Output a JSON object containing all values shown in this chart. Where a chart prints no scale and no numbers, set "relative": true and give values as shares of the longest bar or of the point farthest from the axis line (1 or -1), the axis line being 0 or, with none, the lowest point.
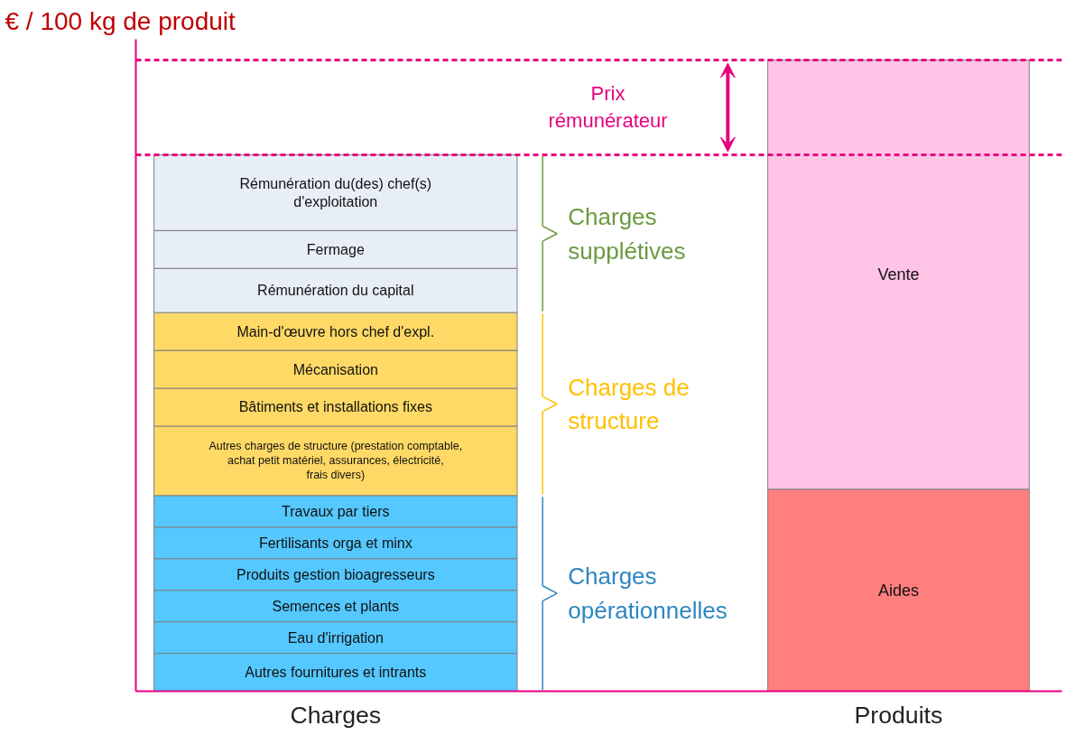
{
  "chart_data": {
    "type": "bar",
    "stacked": true,
    "relative": true,
    "ylabel": "€ / 100 kg de produit",
    "categories": [
      "Charges",
      "Produits"
    ],
    "series": [
      {
        "name": "Autres fournitures et intrants",
        "color": "#55c8ff",
        "values": [
          0.06,
          null
        ]
      },
      {
        "name": "Eau d'irrigation",
        "color": "#55c8ff",
        "values": [
          0.05,
          null
        ]
      },
      {
        "name": "Semences et plants",
        "color": "#55c8ff",
        "values": [
          0.05,
          null
        ]
      },
      {
        "name": "Produits gestion bioagresseurs",
        "color": "#55c8ff",
        "values": [
          0.05,
          null
        ]
      },
      {
        "name": "Fertilisants orga et minx",
        "color": "#55c8ff",
        "values": [
          0.05,
          null
        ]
      },
      {
        "name": "Travaux par tiers",
        "color": "#55c8ff",
        "values": [
          0.05,
          null
        ]
      },
      {
        "name": "Autres charges de structure (prestation comptable, achat petit matériel, assurances, électricité, frais divers)",
        "color": "#ffd966",
        "values": [
          0.11,
          null
        ]
      },
      {
        "name": "Bâtiments et installations fixes",
        "color": "#ffd966",
        "values": [
          0.06,
          null
        ]
      },
      {
        "name": "Mécanisation",
        "color": "#ffd966",
        "values": [
          0.06,
          null
        ]
      },
      {
        "name": "Main-d'œuvre hors chef d'expl.",
        "color": "#ffd966",
        "values": [
          0.06,
          null
        ]
      },
      {
        "name": "Rémunération du capital",
        "color": "#e8eef7",
        "values": [
          0.07,
          null
        ]
      },
      {
        "name": "Fermage",
        "color": "#e8eef7",
        "values": [
          0.06,
          null
        ]
      },
      {
        "name": "Rémunération du(des) chef(s) d'exploitation",
        "color": "#e8eef7",
        "values": [
          0.12,
          null
        ]
      },
      {
        "name": "Aides",
        "color": "#ff7f7f",
        "values": [
          null,
          0.32
        ]
      },
      {
        "name": "Vente",
        "color": "#ffc4e6",
        "values": [
          null,
          0.68
        ]
      }
    ],
    "ref_lines": [
      {
        "axis": "y",
        "value": 0.85,
        "color": "#e6007e",
        "line_style": "dashed"
      },
      {
        "axis": "y",
        "value": 1.0,
        "color": "#e6007e",
        "line_style": "dashed"
      }
    ],
    "annotations": [
      "Charges opérationnelles",
      "Charges de structure",
      "Charges supplétives",
      "Prix rémunérateur"
    ]
  }
}
